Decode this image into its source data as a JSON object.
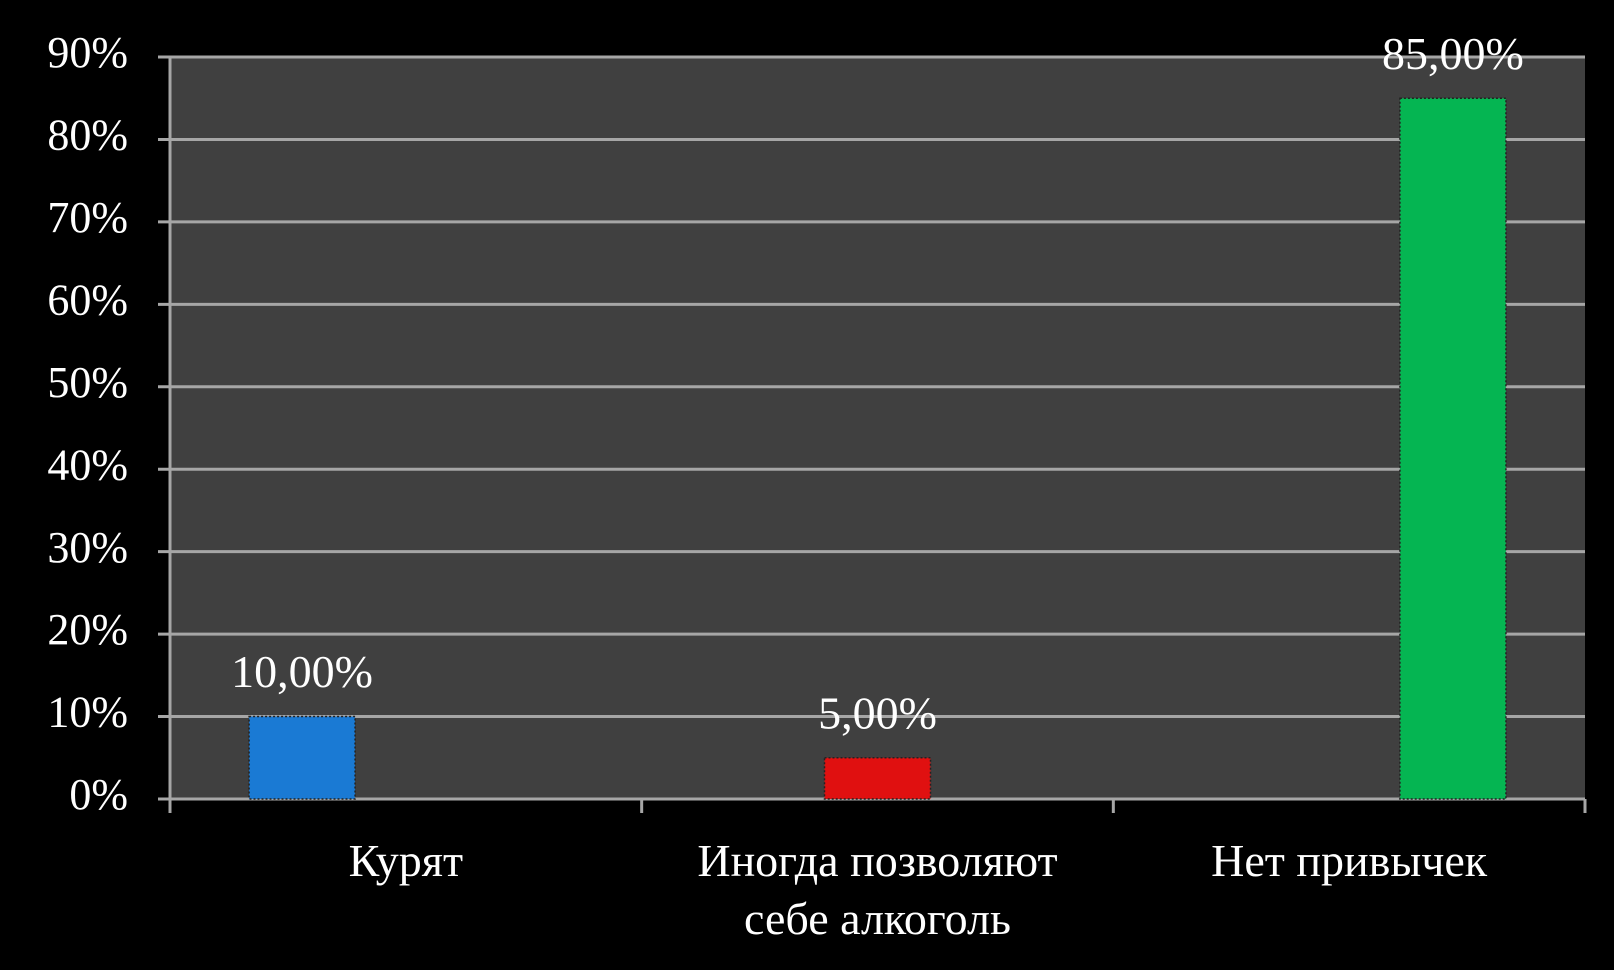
{
  "chart_data": {
    "type": "bar",
    "categories": [
      "Курят",
      "Иногда позволяют себе алкоголь",
      "Нет привычек"
    ],
    "values": [
      10,
      5,
      85
    ],
    "value_labels": [
      "10,00%",
      "5,00%",
      "85,00%"
    ],
    "colors": [
      "#1a7ad4",
      "#e01010",
      "#05b552"
    ],
    "ylim": [
      0,
      90
    ],
    "yticks": [
      {
        "value": 0,
        "label": "0%"
      },
      {
        "value": 10,
        "label": "10%"
      },
      {
        "value": 20,
        "label": "20%"
      },
      {
        "value": 30,
        "label": "30%"
      },
      {
        "value": 40,
        "label": "40%"
      },
      {
        "value": 50,
        "label": "50%"
      },
      {
        "value": 60,
        "label": "60%"
      },
      {
        "value": 70,
        "label": "70%"
      },
      {
        "value": 80,
        "label": "80%"
      },
      {
        "value": 90,
        "label": "90%"
      }
    ],
    "grid": true
  }
}
